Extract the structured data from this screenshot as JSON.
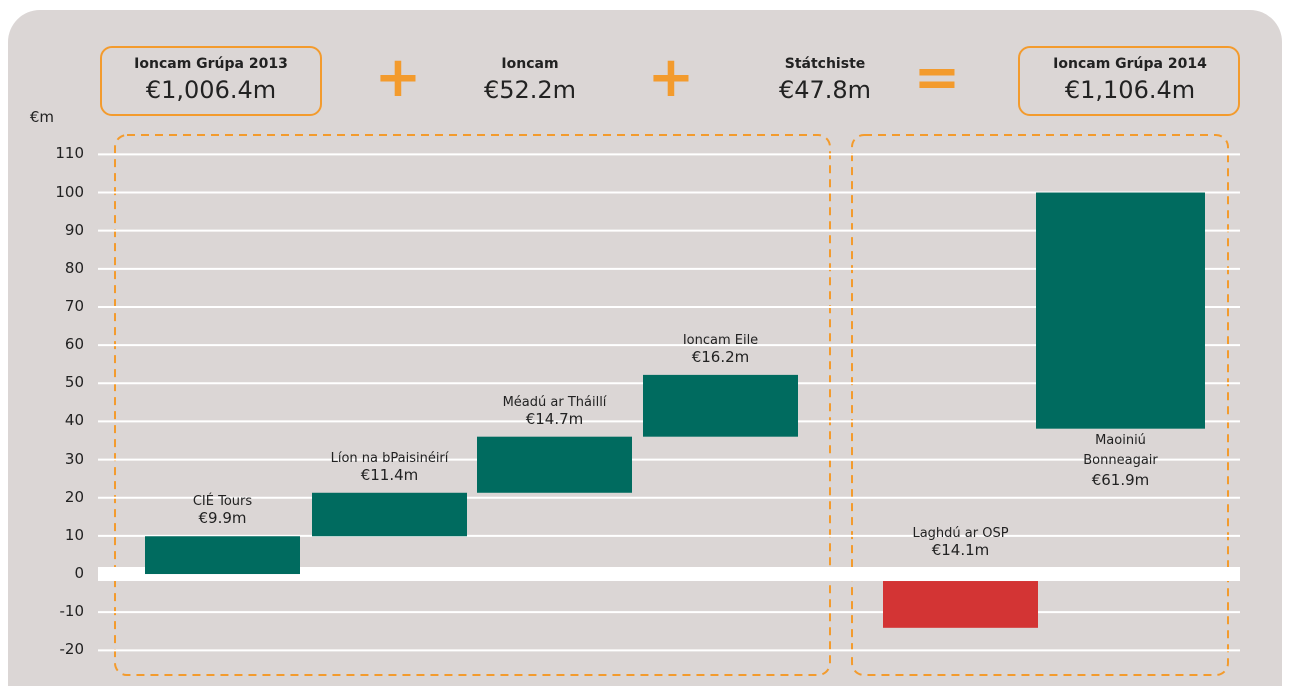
{
  "chart_data": {
    "type": "waterfall",
    "summary": [
      {
        "title": "Ioncam Grúpa 2013",
        "value": "€1,006.4m"
      },
      {
        "title": "Ioncam",
        "value": "€52.2m"
      },
      {
        "title": "Státchiste",
        "value": "€47.8m"
      },
      {
        "title": "Ioncam Grúpa 2014",
        "value": "€1,106.4m"
      }
    ],
    "operators": [
      "+",
      "+",
      "="
    ],
    "y_label": "€m",
    "categories": [
      "CIÉ Tours",
      "Líon na bPaisinéirí",
      "Méadú ar Tháillí",
      "Ioncam Eile",
      "Laghdú ar OSP",
      "Maoiniú Bonneagair"
    ],
    "values": [
      9.9,
      11.4,
      14.7,
      16.2,
      -14.1,
      61.9
    ],
    "value_labels": [
      "€9.9m",
      "€11.4m",
      "€14.7m",
      "€16.2m",
      "€14.1m",
      "€61.9m"
    ],
    "increase_color": "#006b5f",
    "decrease_color": "#d33434",
    "ylim": [
      -25,
      115
    ],
    "yticks": [
      -20,
      -10,
      0,
      10,
      20,
      30,
      40,
      50,
      60,
      70,
      80,
      90,
      100,
      110
    ],
    "grid": true
  }
}
